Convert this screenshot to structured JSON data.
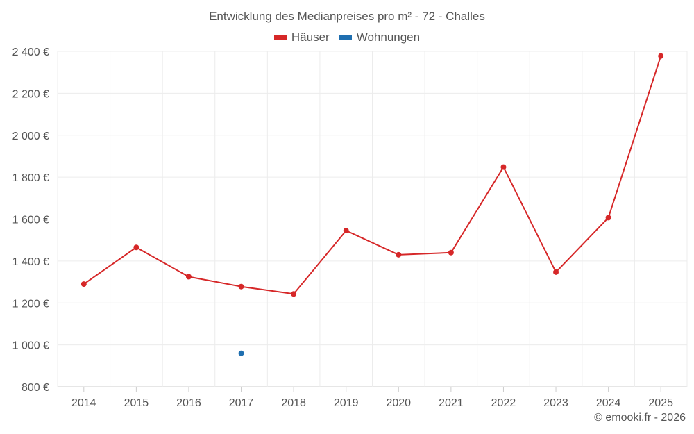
{
  "chart_data": {
    "type": "line",
    "title": "Entwicklung des Medianpreises pro m² - 72 - Challes",
    "categories": [
      "2014",
      "2015",
      "2016",
      "2017",
      "2018",
      "2019",
      "2020",
      "2021",
      "2022",
      "2023",
      "2024",
      "2025"
    ],
    "series": [
      {
        "name": "Häuser",
        "color": "#d62728",
        "values": [
          1290,
          1465,
          1325,
          1278,
          1243,
          1545,
          1430,
          1440,
          1848,
          1347,
          1607,
          2378
        ]
      },
      {
        "name": "Wohnungen",
        "color": "#1f6fb0",
        "values": [
          null,
          null,
          null,
          960,
          null,
          null,
          null,
          null,
          null,
          null,
          null,
          null
        ]
      }
    ],
    "ylim": [
      800,
      2400
    ],
    "yticks": [
      800,
      1000,
      1200,
      1400,
      1600,
      1800,
      2000,
      2200,
      2400
    ],
    "ytick_labels": [
      "800 €",
      "1 000 €",
      "1 200 €",
      "1 400 €",
      "1 600 €",
      "1 800 €",
      "2 000 €",
      "2 200 €",
      "2 400 €"
    ],
    "grid": true,
    "legend_position": "top-center",
    "xlabel": "",
    "ylabel": ""
  },
  "credit": "© emooki.fr - 2026"
}
